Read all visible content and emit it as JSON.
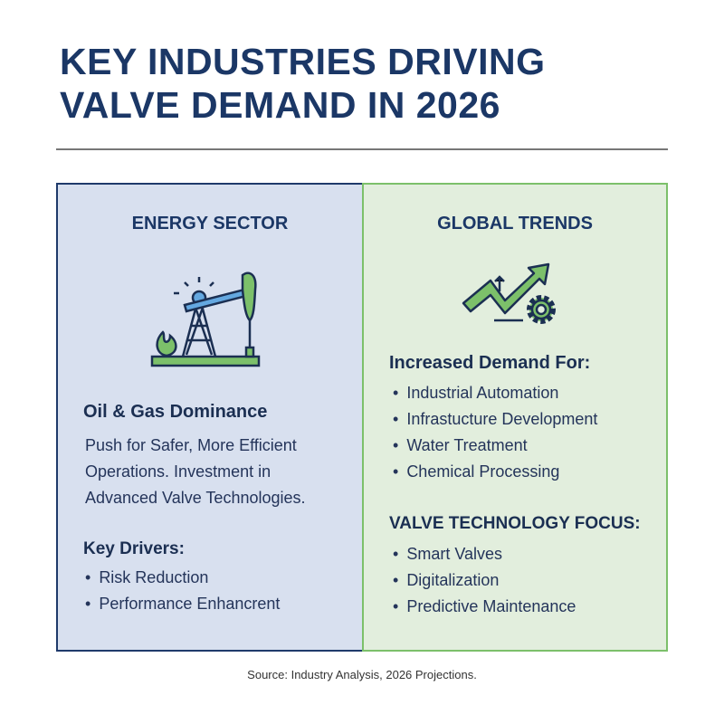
{
  "title": [
    "KEY INDUSTRIES DRIVING",
    "VALVE DEMAND IN 2026"
  ],
  "energy": {
    "heading": "ENERGY SECTOR",
    "icon": "oil-pump-jack-icon",
    "subheading": "Oil & Gas Dominance",
    "description": [
      "Push for Safer, More Efficient",
      "Operations. Investment in",
      "Advanced Valve Technologies."
    ],
    "drivers_heading": "Key Drivers:",
    "drivers": [
      "Risk Reduction",
      "Performance Enhancrent"
    ]
  },
  "trends": {
    "heading": "GLOBAL TRENDS",
    "icon": "growth-arrow-gear-icon",
    "demand_heading": "Increased Demand For:",
    "demand": [
      "Industrial Automation",
      "Infrastucture Development",
      "Water Treatment",
      "Chemical Processing"
    ],
    "tech_heading": "VALVE TECHNOLOGY FOCUS:",
    "tech": [
      "Smart Valves",
      "Digitalization",
      "Predictive Maintenance"
    ]
  },
  "source": "Source: Industry Analysis, 2026 Projections.",
  "colors": {
    "navy": "#1b3766",
    "green": "#7cc06a",
    "left_bg": "#d8e0ef",
    "right_bg": "#e2eedd"
  }
}
